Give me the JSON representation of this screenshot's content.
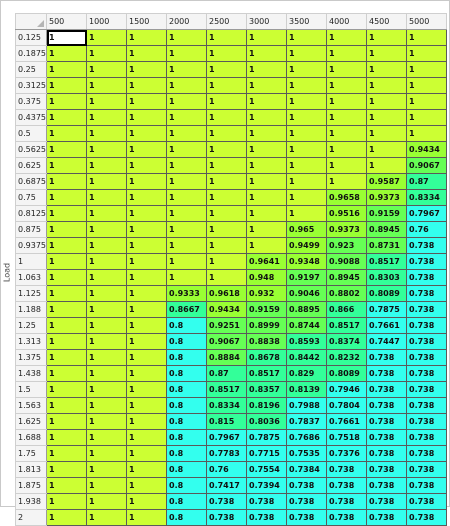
{
  "axis": {
    "load_label": "Load"
  },
  "columns": [
    "500",
    "1000",
    "1500",
    "2000",
    "2500",
    "3000",
    "3500",
    "4000",
    "4500",
    "5000"
  ],
  "rows": [
    {
      "label": "0.125",
      "cells": [
        "1",
        "1",
        "1",
        "1",
        "1",
        "1",
        "1",
        "1",
        "1",
        "1"
      ]
    },
    {
      "label": "0.1875",
      "cells": [
        "1",
        "1",
        "1",
        "1",
        "1",
        "1",
        "1",
        "1",
        "1",
        "1"
      ]
    },
    {
      "label": "0.25",
      "cells": [
        "1",
        "1",
        "1",
        "1",
        "1",
        "1",
        "1",
        "1",
        "1",
        "1"
      ]
    },
    {
      "label": "0.3125",
      "cells": [
        "1",
        "1",
        "1",
        "1",
        "1",
        "1",
        "1",
        "1",
        "1",
        "1"
      ]
    },
    {
      "label": "0.375",
      "cells": [
        "1",
        "1",
        "1",
        "1",
        "1",
        "1",
        "1",
        "1",
        "1",
        "1"
      ]
    },
    {
      "label": "0.4375",
      "cells": [
        "1",
        "1",
        "1",
        "1",
        "1",
        "1",
        "1",
        "1",
        "1",
        "1"
      ]
    },
    {
      "label": "0.5",
      "cells": [
        "1",
        "1",
        "1",
        "1",
        "1",
        "1",
        "1",
        "1",
        "1",
        "1"
      ]
    },
    {
      "label": "0.5625",
      "cells": [
        "1",
        "1",
        "1",
        "1",
        "1",
        "1",
        "1",
        "1",
        "1",
        "0.9434"
      ]
    },
    {
      "label": "0.625",
      "cells": [
        "1",
        "1",
        "1",
        "1",
        "1",
        "1",
        "1",
        "1",
        "1",
        "0.9067"
      ]
    },
    {
      "label": "0.6875",
      "cells": [
        "1",
        "1",
        "1",
        "1",
        "1",
        "1",
        "1",
        "1",
        "0.9587",
        "0.87"
      ]
    },
    {
      "label": "0.75",
      "cells": [
        "1",
        "1",
        "1",
        "1",
        "1",
        "1",
        "1",
        "0.9658",
        "0.9373",
        "0.8334"
      ]
    },
    {
      "label": "0.8125",
      "cells": [
        "1",
        "1",
        "1",
        "1",
        "1",
        "1",
        "1",
        "0.9516",
        "0.9159",
        "0.7967"
      ]
    },
    {
      "label": "0.875",
      "cells": [
        "1",
        "1",
        "1",
        "1",
        "1",
        "1",
        "0.965",
        "0.9373",
        "0.8945",
        "0.76"
      ]
    },
    {
      "label": "0.9375",
      "cells": [
        "1",
        "1",
        "1",
        "1",
        "1",
        "1",
        "0.9499",
        "0.923",
        "0.8731",
        "0.738"
      ]
    },
    {
      "label": "1",
      "cells": [
        "1",
        "1",
        "1",
        "1",
        "1",
        "0.9641",
        "0.9348",
        "0.9088",
        "0.8517",
        "0.738"
      ]
    },
    {
      "label": "1.063",
      "cells": [
        "1",
        "1",
        "1",
        "1",
        "1",
        "0.948",
        "0.9197",
        "0.8945",
        "0.8303",
        "0.738"
      ]
    },
    {
      "label": "1.125",
      "cells": [
        "1",
        "1",
        "1",
        "0.9333",
        "0.9618",
        "0.932",
        "0.9046",
        "0.8802",
        "0.8089",
        "0.738"
      ]
    },
    {
      "label": "1.188",
      "cells": [
        "1",
        "1",
        "1",
        "0.8667",
        "0.9434",
        "0.9159",
        "0.8895",
        "0.866",
        "0.7875",
        "0.738"
      ]
    },
    {
      "label": "1.25",
      "cells": [
        "1",
        "1",
        "1",
        "0.8",
        "0.9251",
        "0.8999",
        "0.8744",
        "0.8517",
        "0.7661",
        "0.738"
      ]
    },
    {
      "label": "1.313",
      "cells": [
        "1",
        "1",
        "1",
        "0.8",
        "0.9067",
        "0.8838",
        "0.8593",
        "0.8374",
        "0.7447",
        "0.738"
      ]
    },
    {
      "label": "1.375",
      "cells": [
        "1",
        "1",
        "1",
        "0.8",
        "0.8884",
        "0.8678",
        "0.8442",
        "0.8232",
        "0.738",
        "0.738"
      ]
    },
    {
      "label": "1.438",
      "cells": [
        "1",
        "1",
        "1",
        "0.8",
        "0.87",
        "0.8517",
        "0.829",
        "0.8089",
        "0.738",
        "0.738"
      ]
    },
    {
      "label": "1.5",
      "cells": [
        "1",
        "1",
        "1",
        "0.8",
        "0.8517",
        "0.8357",
        "0.8139",
        "0.7946",
        "0.738",
        "0.738"
      ]
    },
    {
      "label": "1.563",
      "cells": [
        "1",
        "1",
        "1",
        "0.8",
        "0.8334",
        "0.8196",
        "0.7988",
        "0.7804",
        "0.738",
        "0.738"
      ]
    },
    {
      "label": "1.625",
      "cells": [
        "1",
        "1",
        "1",
        "0.8",
        "0.815",
        "0.8036",
        "0.7837",
        "0.7661",
        "0.738",
        "0.738"
      ]
    },
    {
      "label": "1.688",
      "cells": [
        "1",
        "1",
        "1",
        "0.8",
        "0.7967",
        "0.7875",
        "0.7686",
        "0.7518",
        "0.738",
        "0.738"
      ]
    },
    {
      "label": "1.75",
      "cells": [
        "1",
        "1",
        "1",
        "0.8",
        "0.7783",
        "0.7715",
        "0.7535",
        "0.7376",
        "0.738",
        "0.738"
      ]
    },
    {
      "label": "1.813",
      "cells": [
        "1",
        "1",
        "1",
        "0.8",
        "0.76",
        "0.7554",
        "0.7384",
        "0.738",
        "0.738",
        "0.738"
      ]
    },
    {
      "label": "1.875",
      "cells": [
        "1",
        "1",
        "1",
        "0.8",
        "0.7417",
        "0.7394",
        "0.738",
        "0.738",
        "0.738",
        "0.738"
      ]
    },
    {
      "label": "1.938",
      "cells": [
        "1",
        "1",
        "1",
        "0.8",
        "0.738",
        "0.738",
        "0.738",
        "0.738",
        "0.738",
        "0.738"
      ]
    },
    {
      "label": "2",
      "cells": [
        "1",
        "1",
        "1",
        "0.8",
        "0.738",
        "0.738",
        "0.738",
        "0.738",
        "0.738",
        "0.738"
      ]
    }
  ],
  "colors": {
    "full": "#ccff33",
    "high": "#99ff33",
    "mid": "#66ff55",
    "low": "#33ff99",
    "min": "#33ffee"
  }
}
